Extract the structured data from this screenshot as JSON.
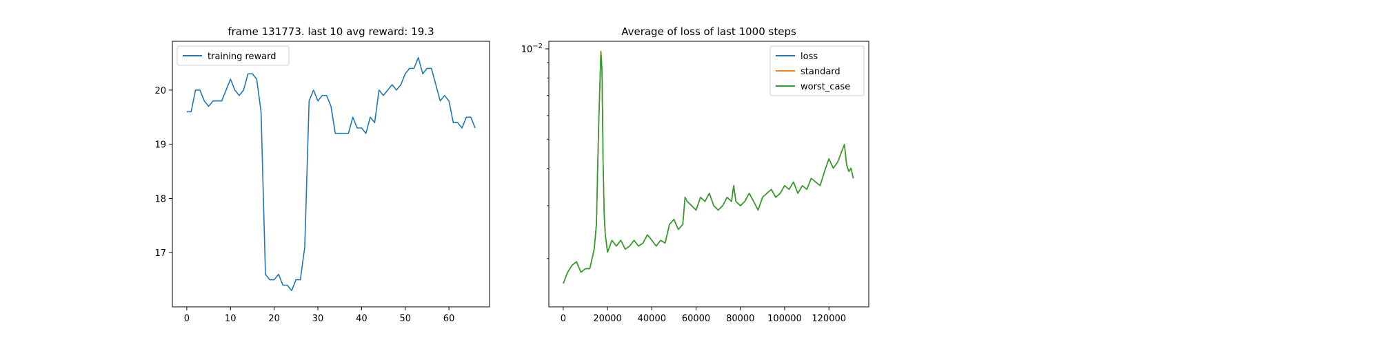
{
  "chart_data": [
    {
      "type": "line",
      "title": "frame 131773. last 10 avg reward: 19.3",
      "xlabel": "",
      "ylabel": "",
      "xlim": [
        -3.3,
        69.3
      ],
      "ylim": [
        16.0,
        20.9
      ],
      "x_ticks": [
        0,
        10,
        20,
        30,
        40,
        50,
        60
      ],
      "y_ticks": [
        17,
        18,
        19,
        20
      ],
      "grid": false,
      "legend": "top-left",
      "series": [
        {
          "name": "training reward",
          "color": "#1f77b4",
          "x": [
            0,
            1,
            2,
            3,
            4,
            5,
            6,
            7,
            8,
            9,
            10,
            11,
            12,
            13,
            14,
            15,
            16,
            17,
            18,
            19,
            20,
            21,
            22,
            23,
            24,
            25,
            26,
            27,
            28,
            29,
            30,
            31,
            32,
            33,
            34,
            35,
            36,
            37,
            38,
            39,
            40,
            41,
            42,
            43,
            44,
            45,
            46,
            47,
            48,
            49,
            50,
            51,
            52,
            53,
            54,
            55,
            56,
            57,
            58,
            59,
            60,
            61,
            62,
            63,
            64,
            65,
            66
          ],
          "values": [
            19.6,
            19.6,
            20.0,
            20.0,
            19.8,
            19.7,
            19.8,
            19.8,
            19.8,
            20.0,
            20.2,
            20.0,
            19.9,
            20.0,
            20.3,
            20.3,
            20.2,
            19.6,
            16.6,
            16.5,
            16.5,
            16.6,
            16.4,
            16.4,
            16.3,
            16.5,
            16.5,
            17.1,
            19.8,
            20.0,
            19.8,
            19.9,
            19.9,
            19.7,
            19.2,
            19.2,
            19.2,
            19.2,
            19.5,
            19.3,
            19.3,
            19.2,
            19.5,
            19.4,
            20.0,
            19.9,
            20.0,
            20.1,
            20.0,
            20.1,
            20.3,
            20.4,
            20.4,
            20.6,
            20.3,
            20.4,
            20.4,
            20.1,
            19.8,
            19.9,
            19.8,
            19.4,
            19.4,
            19.3,
            19.5,
            19.5,
            19.3
          ]
        }
      ]
    },
    {
      "type": "line",
      "title": "Average of loss of last 1000 steps",
      "xlabel": "",
      "ylabel": "",
      "xlim": [
        -6500,
        138000
      ],
      "ylim": [
        0.00138,
        0.0106
      ],
      "y_scale": "log",
      "x_ticks": [
        0,
        20000,
        40000,
        60000,
        80000,
        100000,
        120000
      ],
      "y_major_tick": "10^-2",
      "y_minor_ticks": [
        0.002,
        0.003,
        0.004,
        0.005,
        0.006,
        0.007,
        0.008,
        0.009
      ],
      "grid": false,
      "legend": "top-right",
      "series": [
        {
          "name": "loss",
          "color": "#1f77b4",
          "x": [
            0,
            2000,
            4000,
            6000,
            8000,
            10000,
            12000,
            14000,
            15000,
            16000,
            17000,
            17500,
            18000,
            18500,
            19000,
            20000,
            22000,
            24000,
            26000,
            28000,
            30000,
            32000,
            34000,
            36000,
            38000,
            40000,
            42000,
            44000,
            46000,
            48000,
            50000,
            52000,
            54000,
            55000,
            56000,
            58000,
            60000,
            62000,
            64000,
            66000,
            68000,
            70000,
            72000,
            74000,
            76000,
            77000,
            78000,
            80000,
            82000,
            84000,
            86000,
            88000,
            90000,
            92000,
            94000,
            96000,
            98000,
            100000,
            102000,
            104000,
            106000,
            108000,
            110000,
            112000,
            114000,
            116000,
            118000,
            120000,
            122000,
            124000,
            126000,
            127000,
            128000,
            129000,
            130000,
            131000
          ],
          "values": [
            0.00165,
            0.0018,
            0.0019,
            0.00195,
            0.0018,
            0.00185,
            0.00185,
            0.00215,
            0.0026,
            0.0055,
            0.0098,
            0.0085,
            0.0042,
            0.0028,
            0.0024,
            0.0021,
            0.0023,
            0.0022,
            0.0023,
            0.00215,
            0.0022,
            0.0023,
            0.0022,
            0.00225,
            0.0024,
            0.0023,
            0.0022,
            0.0023,
            0.00225,
            0.0026,
            0.0027,
            0.0025,
            0.0026,
            0.0032,
            0.0031,
            0.003,
            0.0029,
            0.0032,
            0.0031,
            0.0033,
            0.003,
            0.0029,
            0.003,
            0.0032,
            0.0031,
            0.0035,
            0.0031,
            0.003,
            0.0031,
            0.0033,
            0.0031,
            0.0029,
            0.0032,
            0.0033,
            0.0034,
            0.0032,
            0.0033,
            0.0035,
            0.0034,
            0.0036,
            0.0033,
            0.0035,
            0.0034,
            0.0037,
            0.0036,
            0.0035,
            0.0039,
            0.0043,
            0.004,
            0.0042,
            0.0046,
            0.0048,
            0.0041,
            0.0039,
            0.004,
            0.0037
          ]
        },
        {
          "name": "standard",
          "color": "#ff7f0e",
          "x": [
            0,
            2000,
            4000,
            6000,
            8000,
            10000,
            12000,
            14000,
            15000,
            16000,
            17000,
            17500,
            18000,
            18500,
            19000,
            20000,
            22000,
            24000,
            26000,
            28000,
            30000,
            32000,
            34000,
            36000,
            38000,
            40000,
            42000,
            44000,
            46000,
            48000,
            50000,
            52000,
            54000,
            55000,
            56000,
            58000,
            60000,
            62000,
            64000,
            66000,
            68000,
            70000,
            72000,
            74000,
            76000,
            77000,
            78000,
            80000,
            82000,
            84000,
            86000,
            88000,
            90000,
            92000,
            94000,
            96000,
            98000,
            100000,
            102000,
            104000,
            106000,
            108000,
            110000,
            112000,
            114000,
            116000,
            118000,
            120000,
            122000,
            124000,
            126000,
            127000,
            128000,
            129000,
            130000,
            131000
          ],
          "values": [
            0.00165,
            0.0018,
            0.0019,
            0.00195,
            0.0018,
            0.00185,
            0.00185,
            0.00215,
            0.0026,
            0.0055,
            0.0098,
            0.0085,
            0.0042,
            0.0028,
            0.0024,
            0.0021,
            0.0023,
            0.0022,
            0.0023,
            0.00215,
            0.0022,
            0.0023,
            0.0022,
            0.00225,
            0.0024,
            0.0023,
            0.0022,
            0.0023,
            0.00225,
            0.0026,
            0.0027,
            0.0025,
            0.0026,
            0.0032,
            0.0031,
            0.003,
            0.0029,
            0.0032,
            0.0031,
            0.0033,
            0.003,
            0.0029,
            0.003,
            0.0032,
            0.0031,
            0.0035,
            0.0031,
            0.003,
            0.0031,
            0.0033,
            0.0031,
            0.0029,
            0.0032,
            0.0033,
            0.0034,
            0.0032,
            0.0033,
            0.0035,
            0.0034,
            0.0036,
            0.0033,
            0.0035,
            0.0034,
            0.0037,
            0.0036,
            0.0035,
            0.0039,
            0.0043,
            0.004,
            0.0042,
            0.0046,
            0.0048,
            0.0041,
            0.0039,
            0.004,
            0.0037
          ]
        },
        {
          "name": "worst_case",
          "color": "#2ca02c",
          "x": [
            0,
            2000,
            4000,
            6000,
            8000,
            10000,
            12000,
            14000,
            15000,
            16000,
            17000,
            17500,
            18000,
            18500,
            19000,
            20000,
            22000,
            24000,
            26000,
            28000,
            30000,
            32000,
            34000,
            36000,
            38000,
            40000,
            42000,
            44000,
            46000,
            48000,
            50000,
            52000,
            54000,
            55000,
            56000,
            58000,
            60000,
            62000,
            64000,
            66000,
            68000,
            70000,
            72000,
            74000,
            76000,
            77000,
            78000,
            80000,
            82000,
            84000,
            86000,
            88000,
            90000,
            92000,
            94000,
            96000,
            98000,
            100000,
            102000,
            104000,
            106000,
            108000,
            110000,
            112000,
            114000,
            116000,
            118000,
            120000,
            122000,
            124000,
            126000,
            127000,
            128000,
            129000,
            130000,
            131000
          ],
          "values": [
            0.00165,
            0.0018,
            0.0019,
            0.00195,
            0.0018,
            0.00185,
            0.00185,
            0.00215,
            0.0026,
            0.0055,
            0.0098,
            0.0085,
            0.0042,
            0.0028,
            0.0024,
            0.0021,
            0.0023,
            0.0022,
            0.0023,
            0.00215,
            0.0022,
            0.0023,
            0.0022,
            0.00225,
            0.0024,
            0.0023,
            0.0022,
            0.0023,
            0.00225,
            0.0026,
            0.0027,
            0.0025,
            0.0026,
            0.0032,
            0.0031,
            0.003,
            0.0029,
            0.0032,
            0.0031,
            0.0033,
            0.003,
            0.0029,
            0.003,
            0.0032,
            0.0031,
            0.0035,
            0.0031,
            0.003,
            0.0031,
            0.0033,
            0.0031,
            0.0029,
            0.0032,
            0.0033,
            0.0034,
            0.0032,
            0.0033,
            0.0035,
            0.0034,
            0.0036,
            0.0033,
            0.0035,
            0.0034,
            0.0037,
            0.0036,
            0.0035,
            0.0039,
            0.0043,
            0.004,
            0.0042,
            0.0046,
            0.0048,
            0.0041,
            0.0039,
            0.004,
            0.0037
          ]
        }
      ]
    }
  ]
}
